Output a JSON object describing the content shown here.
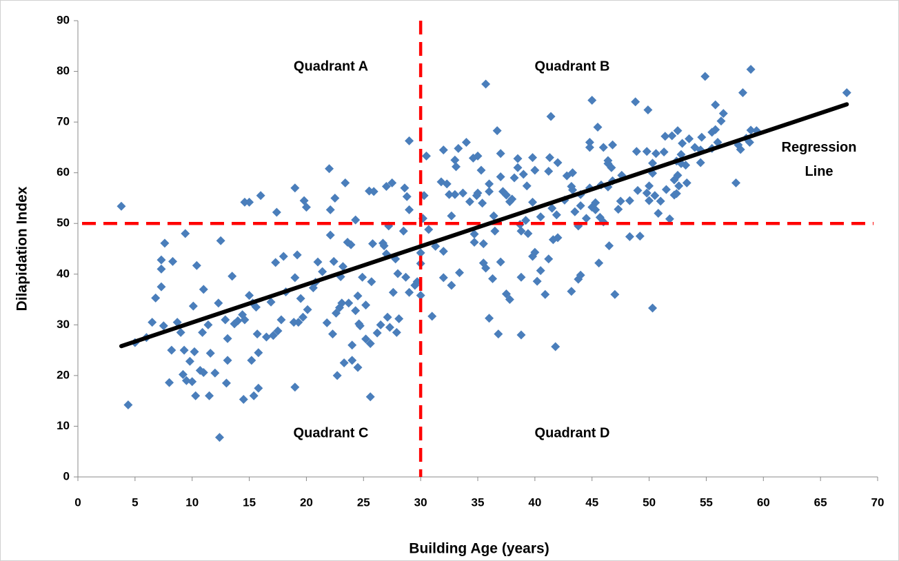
{
  "chart_data": {
    "type": "scatter",
    "x_label": "Building Age (years)",
    "y_label": "Dilapidation Index",
    "xlim": [
      0,
      70
    ],
    "xticks": [
      0,
      5,
      10,
      15,
      20,
      25,
      30,
      35,
      40,
      45,
      50,
      55,
      60,
      65,
      70
    ],
    "ylim": [
      0,
      90
    ],
    "yticks": [
      0,
      10,
      20,
      30,
      40,
      50,
      60,
      70,
      80,
      90
    ],
    "grid": false,
    "x": [
      3.8,
      4.4,
      5,
      6,
      6.5,
      6.8,
      7.3,
      7.3,
      7.3,
      7.5,
      7.6,
      8,
      8.2,
      8.3,
      8.7,
      9,
      9.2,
      9.3,
      9.4,
      9.5,
      9.8,
      10,
      10.1,
      10.2,
      10.3,
      10.4,
      10.7,
      10.9,
      11,
      11,
      11.4,
      11.5,
      11.6,
      12,
      12.3,
      12.4,
      12.5,
      12.9,
      13,
      13.1,
      13.1,
      13.5,
      13.7,
      14,
      14.4,
      14.5,
      14.6,
      14.6,
      15,
      15,
      15.2,
      15.3,
      15.4,
      15.6,
      15.7,
      15.8,
      15.8,
      16,
      16.5,
      16.9,
      17.1,
      17.3,
      17.4,
      17.5,
      17.8,
      18,
      18.2,
      18.9,
      19,
      19,
      19,
      19.2,
      19.3,
      19.5,
      19.7,
      19.8,
      20,
      20.1,
      20.6,
      20.8,
      21,
      21.4,
      21.8,
      22,
      22.1,
      22.1,
      22.3,
      22.4,
      22.5,
      22.6,
      22.7,
      22.9,
      23,
      23.1,
      23.2,
      23.3,
      23.4,
      23.6,
      23.7,
      23.9,
      24,
      24,
      24.3,
      24.3,
      24.6,
      24.5,
      24.5,
      24.7,
      24.9,
      25.2,
      25.2,
      25.5,
      25.6,
      25.6,
      25.7,
      25.8,
      25.9,
      26.2,
      26.5,
      26.7,
      26.8,
      27,
      27,
      27.1,
      27.2,
      27.3,
      27.5,
      27.6,
      27.8,
      27.9,
      28,
      28.1,
      28.5,
      28.6,
      28.7,
      28.8,
      29,
      29,
      29,
      29.5,
      29.7,
      30,
      30,
      30,
      30.2,
      30.3,
      30.5,
      30.7,
      31,
      31.3,
      31.8,
      32,
      32,
      32,
      32.3,
      32.5,
      32.7,
      32.7,
      33,
      33,
      33.1,
      33.3,
      33.4,
      33.7,
      34,
      34.3,
      34.6,
      34.7,
      34.7,
      34.9,
      35,
      35,
      35.3,
      35.4,
      35.5,
      35.5,
      35.7,
      36,
      36,
      35.7,
      36,
      36.4,
      36.5,
      36.3,
      37,
      37.2,
      37,
      36.8,
      36.7,
      37.5,
      37,
      37.8,
      37.5,
      38,
      38.2,
      37.8,
      38.5,
      38.7,
      38.8,
      39,
      38.5,
      39.3,
      38.8,
      38.8,
      39.8,
      40,
      39.2,
      39.4,
      40.5,
      39.8,
      40,
      39.8,
      41.2,
      40.2,
      41.5,
      40.5,
      41.9,
      40.9,
      41.2,
      41.3,
      41.4,
      42.6,
      41.6,
      42.8,
      42,
      42,
      41.8,
      43.2,
      43.3,
      43.5,
      43.8,
      44,
      44,
      43.3,
      43.2,
      44.5,
      44.8,
      43.8,
      45,
      44,
      45.3,
      45.8,
      46,
      44.8,
      44.8,
      45,
      46.4,
      46.7,
      46.8,
      45.3,
      45.7,
      45.5,
      45.6,
      46.4,
      46,
      46.4,
      47.5,
      46.5,
      47.3,
      46.8,
      47,
      47.6,
      49,
      48.3,
      48.3,
      50,
      48.9,
      48.8,
      49.2,
      50.8,
      50.3,
      49.8,
      49.8,
      49.9,
      50.3,
      50.5,
      50.6,
      51,
      51.5,
      52.2,
      50.3,
      50,
      52.4,
      51.3,
      52.2,
      51.4,
      52.8,
      51.8,
      52,
      52.5,
      52.4,
      52.8,
      52.5,
      52.6,
      53.2,
      52.9,
      53.3,
      53.5,
      54,
      54.5,
      54.6,
      54.5,
      54.9,
      55.5,
      55.5,
      55.8,
      56.3,
      57.6,
      56.5,
      58,
      58.2,
      58.5,
      58.9,
      58.9,
      59.4,
      58.8,
      56,
      55.8,
      57.8,
      67.3
    ],
    "series": [
      {
        "color": "#4a7ebb",
        "values": [
          53.4,
          14.2,
          26.5,
          27.5,
          30.5,
          35.3,
          42.8,
          41,
          37.5,
          29.8,
          46.1,
          18.6,
          25,
          42.5,
          30.5,
          28.5,
          20.2,
          25,
          48,
          19,
          22.8,
          18.8,
          33.7,
          24.7,
          16,
          41.7,
          21,
          28.5,
          37,
          20.6,
          30,
          16,
          24.4,
          20.5,
          34.3,
          7.8,
          46.6,
          31,
          18.5,
          23,
          27.3,
          39.6,
          30.2,
          30.8,
          32,
          15.3,
          31,
          54.2,
          54.2,
          35.8,
          23,
          34.3,
          16,
          33.5,
          28.2,
          24.5,
          17.5,
          55.5,
          27.6,
          34.5,
          27.9,
          42.3,
          52.2,
          28.8,
          31,
          43.5,
          36.5,
          30.5,
          39.3,
          57,
          17.7,
          43.8,
          30.5,
          35.2,
          31.5,
          54.5,
          53.2,
          33,
          37.3,
          38.4,
          42.4,
          40.5,
          30.4,
          60.8,
          47.7,
          52.7,
          28.2,
          42.5,
          55,
          32.3,
          20,
          33.4,
          39.5,
          34.3,
          41.5,
          22.5,
          58,
          46.3,
          34.3,
          45.8,
          26,
          23,
          50.7,
          32.8,
          30.2,
          35.7,
          21.6,
          29.8,
          39.4,
          33.9,
          27.2,
          56.4,
          26.3,
          15.8,
          38.5,
          46,
          56.3,
          28.4,
          30,
          46.1,
          45.6,
          57.3,
          44,
          31.5,
          49.5,
          29.5,
          58,
          36.4,
          43,
          28.5,
          40.1,
          31.2,
          48.5,
          57,
          39.4,
          55.3,
          52.7,
          36.4,
          66.3,
          37.8,
          38.5,
          44.2,
          42.1,
          35.8,
          51,
          55.5,
          63.3,
          48.8,
          31.7,
          45.5,
          58.2,
          64.5,
          44.5,
          39.3,
          57.8,
          55.7,
          37.8,
          51.5,
          62.5,
          55.7,
          61.2,
          64.8,
          40.3,
          56,
          66,
          54.3,
          62.9,
          47.9,
          46.3,
          55.5,
          63.3,
          56,
          60.5,
          54,
          46,
          42.2,
          41.2,
          56.3,
          57.8,
          77.5,
          31.3,
          51.5,
          48.5,
          39.1,
          59.2,
          56.3,
          42.4,
          28.2,
          68.3,
          55.6,
          63.8,
          54.3,
          36.1,
          54.8,
          59,
          35,
          61,
          49.8,
          48.5,
          59.7,
          62.8,
          57.4,
          28,
          39.4,
          63,
          60.5,
          50.6,
          48,
          51.3,
          54.2,
          44.3,
          43.5,
          60.3,
          38.6,
          53,
          40.7,
          51.7,
          36,
          43,
          63,
          71.1,
          54.6,
          46.8,
          59.4,
          62,
          47.2,
          25.7,
          57.3,
          56.6,
          52.3,
          49.5,
          55.7,
          53.5,
          60,
          36.6,
          51,
          57,
          39,
          53.2,
          39.8,
          52.7,
          57.6,
          50.3,
          66,
          65,
          74.3,
          57.2,
          61,
          58.4,
          54.1,
          51.2,
          69,
          42.2,
          61.8,
          65,
          62.4,
          54.4,
          45.6,
          52.8,
          65.5,
          36,
          59.5,
          56.5,
          54.5,
          47.4,
          57.4,
          64.2,
          74,
          47.5,
          52,
          59.9,
          56,
          64.2,
          72.4,
          61.9,
          55.5,
          63.8,
          54.4,
          56.7,
          58.6,
          33.3,
          54.5,
          62.3,
          64.1,
          55.6,
          67.2,
          61.8,
          50.9,
          67.3,
          59.5,
          55.9,
          63.6,
          68.3,
          57.4,
          61.5,
          65.8,
          58,
          66.7,
          65,
          64.5,
          67,
          62,
          79,
          68,
          64.8,
          73.4,
          70.2,
          58,
          71.7,
          64.6,
          75.8,
          66.8,
          68.4,
          80.4,
          68.3,
          66,
          66,
          68.5,
          65.5,
          75.8
        ]
      }
    ],
    "regression": {
      "color": "#000000",
      "x": [
        3.8,
        67.3
      ],
      "y": [
        25.8,
        73.5
      ]
    },
    "reference_color": "#ff0000",
    "hlines": [
      50
    ],
    "vlines": [
      30
    ],
    "annotations": [
      "Quadrant A",
      "Quadrant B",
      "Quadrant C",
      "Quadrant D",
      "Regression Line"
    ]
  }
}
